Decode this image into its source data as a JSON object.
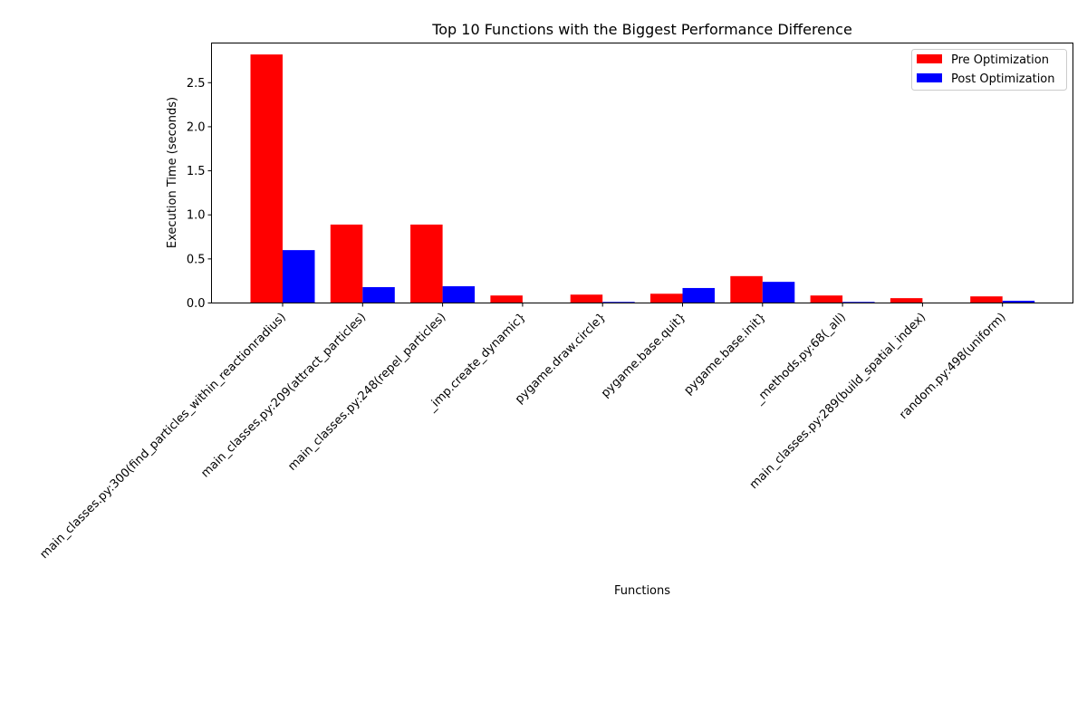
{
  "chart_data": {
    "type": "bar",
    "title": "Top 10 Functions with the Biggest Performance Difference",
    "xlabel": "Functions",
    "ylabel": "Execution Time (seconds)",
    "ylim": [
      0,
      2.95
    ],
    "yticks": [
      "0.0",
      "0.5",
      "1.0",
      "1.5",
      "2.0",
      "2.5"
    ],
    "grid": false,
    "legend_position": "top-right",
    "categories": [
      "main_classes.py:300(find_particles_within_reactionradius)",
      "main_classes.py:209(attract_particles)",
      "main_classes.py:248(repel_particles)",
      "_imp.create_dynamic}",
      "pygame.draw.circle}",
      "pygame.base.quit}",
      "pygame.base.init}",
      "_methods.py:68(_all)",
      "main_classes.py:289(build_spatial_index)",
      "random.py:498(uniform)"
    ],
    "series": [
      {
        "name": "Pre Optimization",
        "color": "#ff0000",
        "values": [
          2.82,
          0.89,
          0.89,
          0.085,
          0.095,
          0.105,
          0.305,
          0.085,
          0.055,
          0.075
        ]
      },
      {
        "name": "Post Optimization",
        "color": "#0000ff",
        "values": [
          0.6,
          0.18,
          0.19,
          0.0,
          0.012,
          0.17,
          0.24,
          0.012,
          0.0,
          0.025
        ]
      }
    ]
  }
}
